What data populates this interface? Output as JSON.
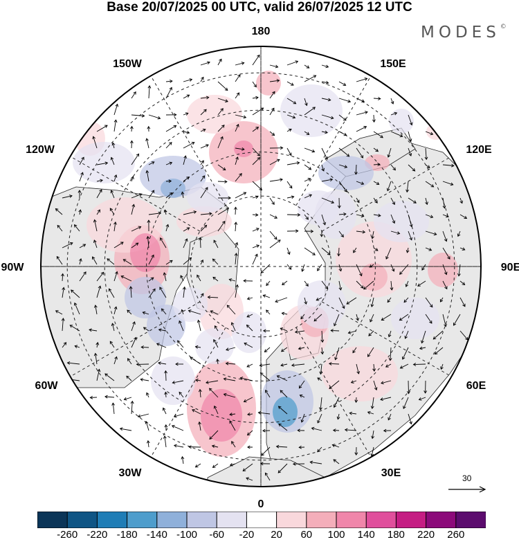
{
  "title": "Base 20/07/2025 00 UTC, valid 26/07/2025 12 UTC",
  "logo": {
    "text": "MODES",
    "mark": "©"
  },
  "map": {
    "projection": "north-polar-stereographic",
    "longitude_labels": [
      "180",
      "150E",
      "120E",
      "90E",
      "60E",
      "30E",
      "0",
      "30W",
      "60W",
      "90W",
      "120W",
      "150W"
    ],
    "land_color": "#e8e8e8",
    "ocean_color": "#ffffff"
  },
  "reference_vector": {
    "label": "30"
  },
  "colorbar": {
    "colors": [
      "#0b3558",
      "#0f5585",
      "#1f7db6",
      "#4e9dcc",
      "#8fb0da",
      "#bfc6e4",
      "#e4e2f1",
      "#ffffff",
      "#f9d8dc",
      "#f4aeba",
      "#f086aa",
      "#e04f9c",
      "#c51d83",
      "#8c0a7a",
      "#5c0c6e"
    ],
    "ticks": [
      "-260",
      "-220",
      "-180",
      "-140",
      "-100",
      "-60",
      "-20",
      "20",
      "60",
      "100",
      "140",
      "180",
      "220",
      "260"
    ]
  }
}
